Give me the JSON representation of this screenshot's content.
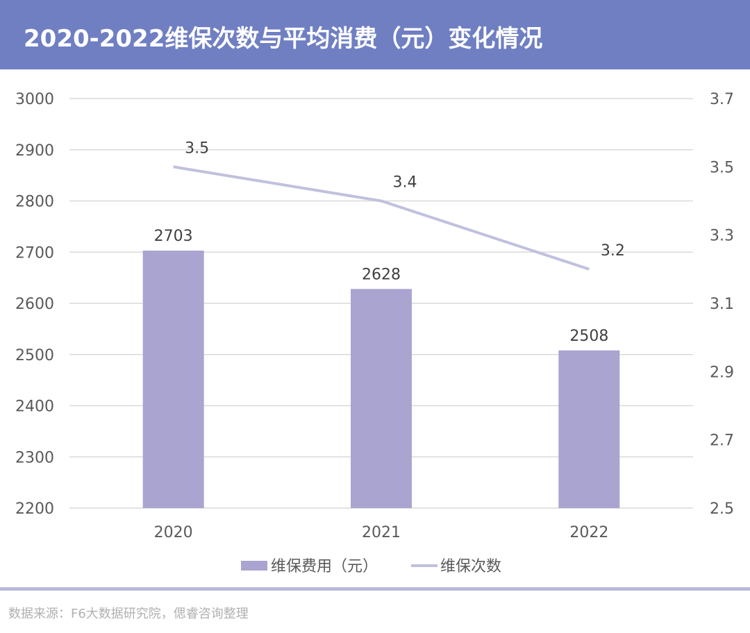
{
  "header": {
    "title": "2020-2022维保次数与平均消费（元）变化情况"
  },
  "footer": {
    "source": "数据来源：F6大数据研究院，偲睿咨询整理"
  },
  "chart_data": {
    "type": "bar+line",
    "categories": [
      "2020",
      "2021",
      "2022"
    ],
    "series": [
      {
        "name": "维保费用（元）",
        "type": "bar",
        "axis": "left",
        "values": [
          2703,
          2628,
          2508
        ],
        "color": "#aaa4d0"
      },
      {
        "name": "维保次数",
        "type": "line",
        "axis": "right",
        "values": [
          3.5,
          3.4,
          3.2
        ],
        "color": "#c0c0de"
      }
    ],
    "y_left": {
      "range": [
        2200,
        3000
      ],
      "ticks": [
        "3000",
        "2900",
        "2800",
        "2700",
        "2600",
        "2500",
        "2400",
        "2300",
        "2200"
      ]
    },
    "y_right": {
      "range": [
        2.5,
        3.7
      ],
      "ticks": [
        "3.7",
        "3.5",
        "3.3",
        "3.1",
        "2.9",
        "2.7",
        "2.5"
      ]
    },
    "grid": true,
    "legend": "bottom"
  }
}
